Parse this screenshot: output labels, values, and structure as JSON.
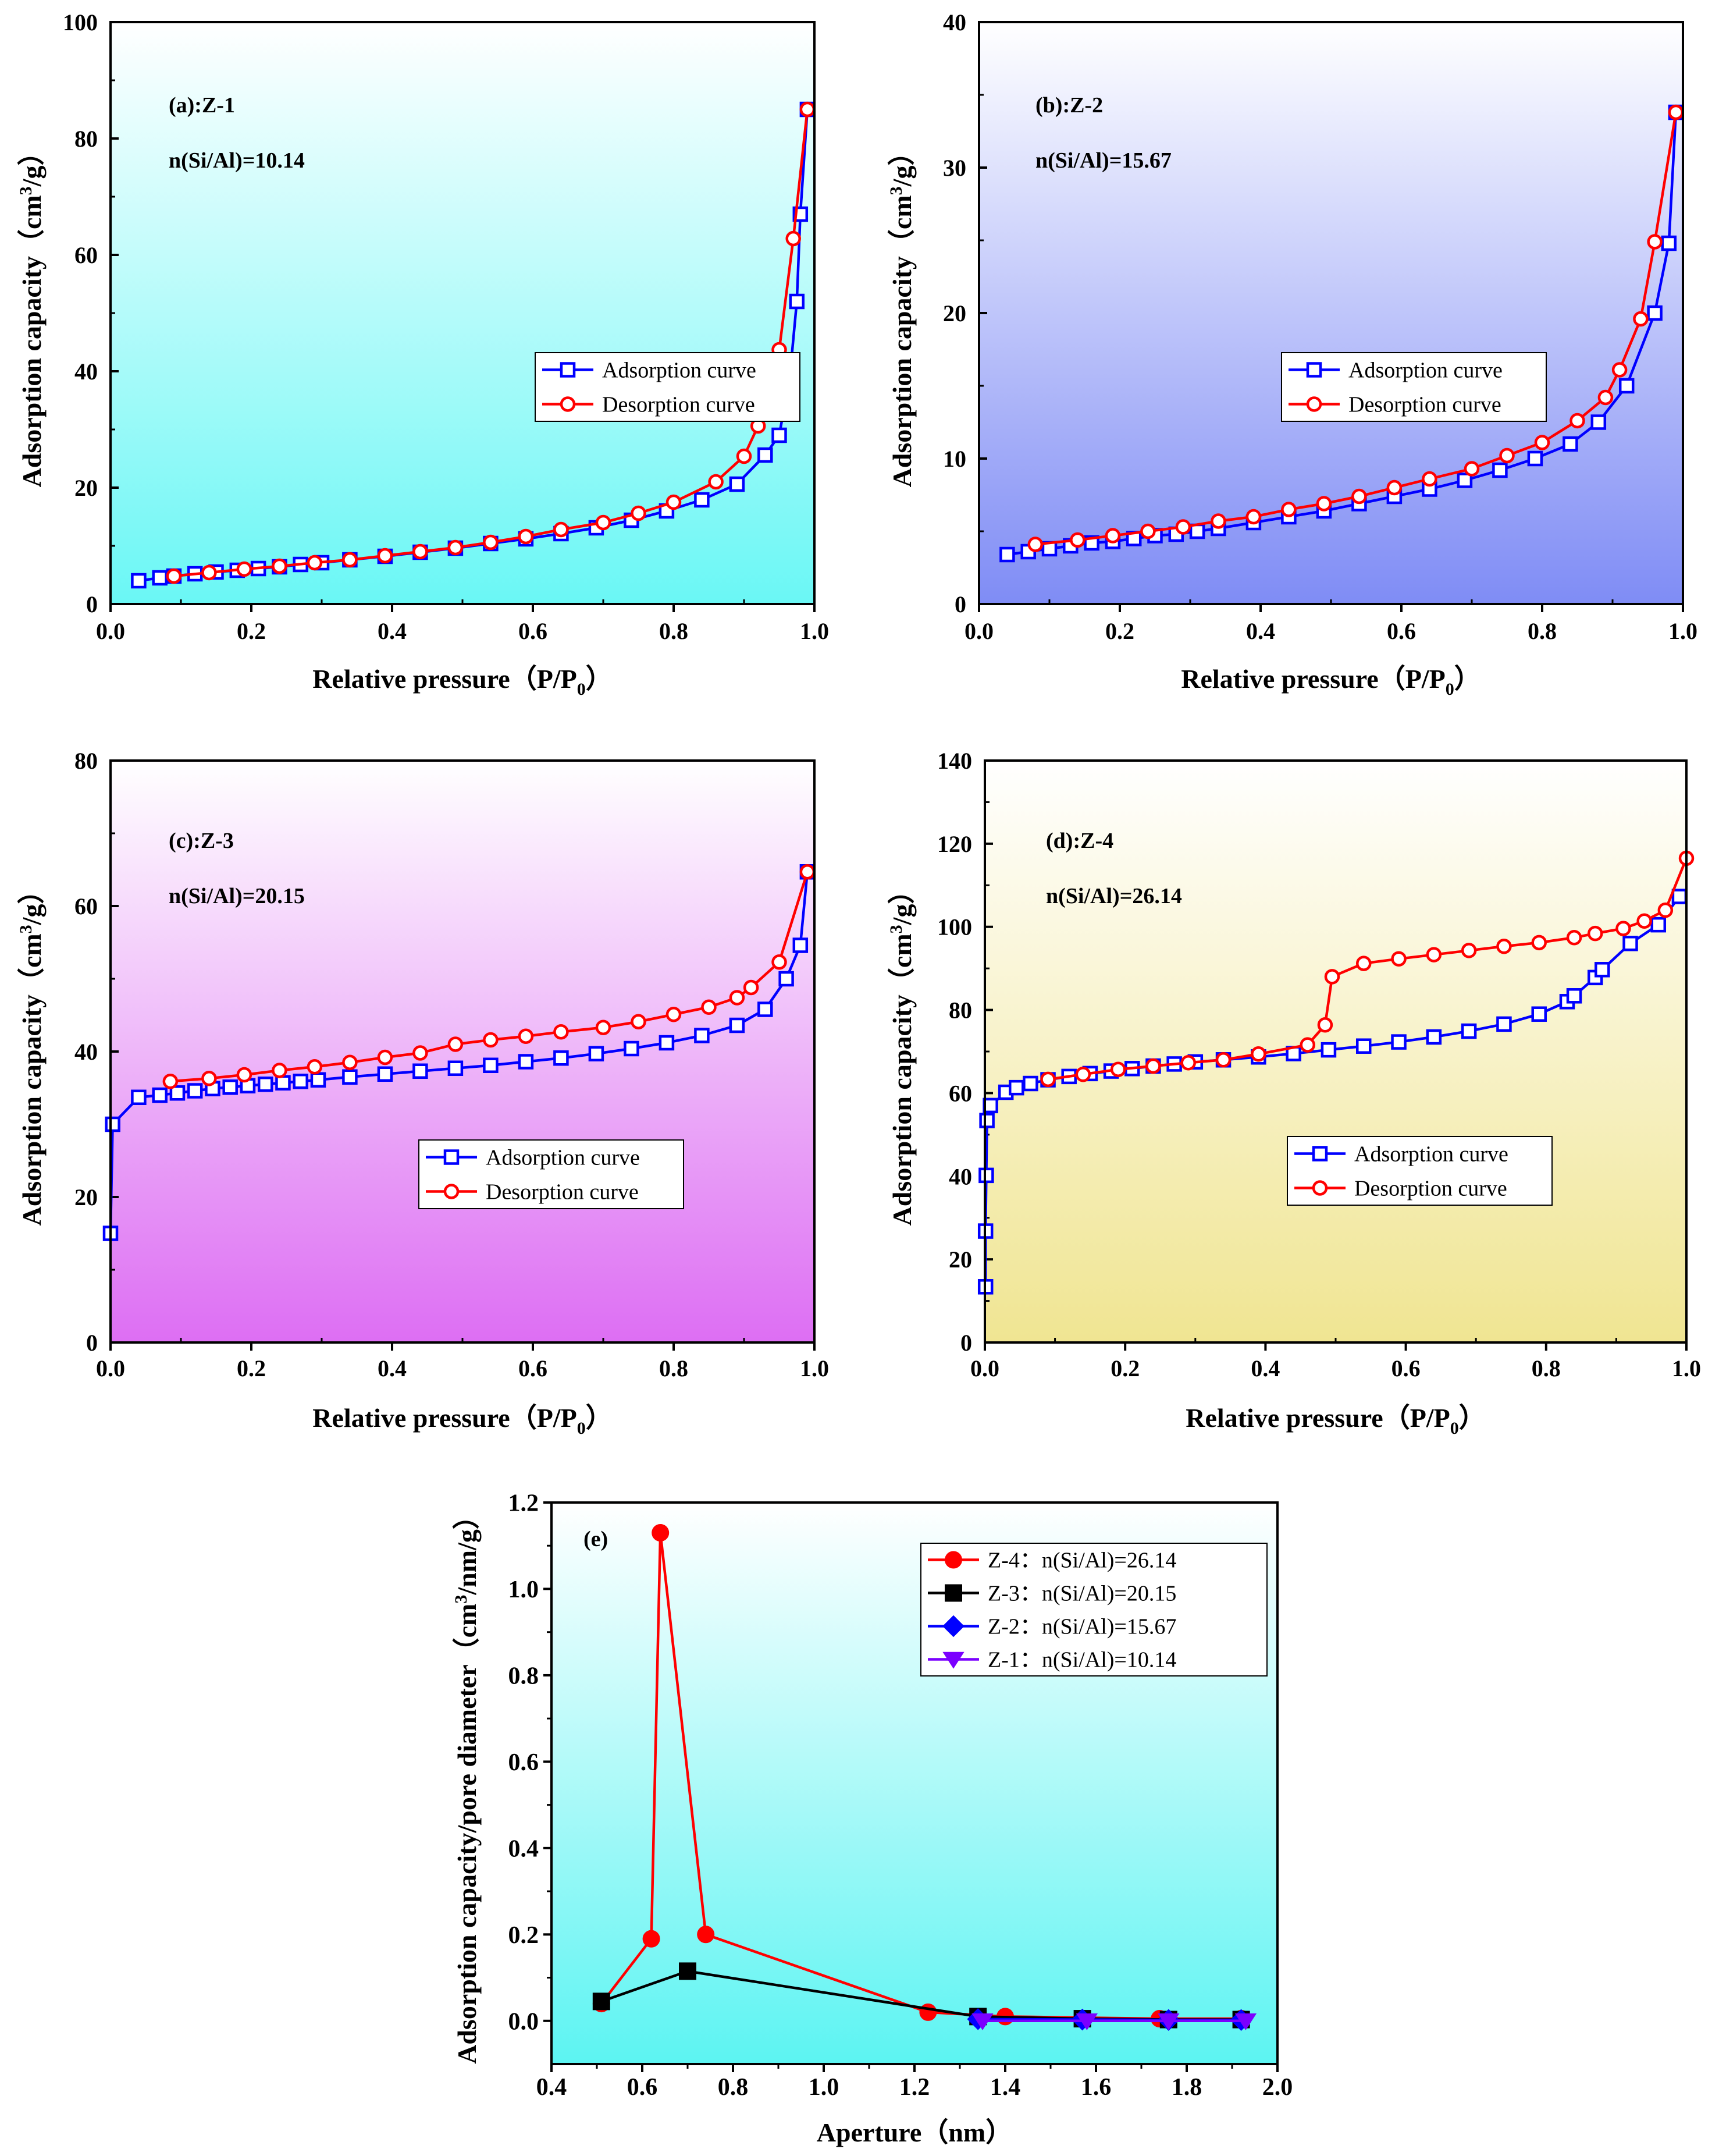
{
  "chart_data": [
    {
      "id": "a",
      "type": "line",
      "panel_label": "(a):Z-1",
      "annotation": "n(Si/Al)=10.14",
      "xlabel": "Relative pressure（P/P0）",
      "xlabel_main": "Relative pressure（P/P",
      "xlabel_sub": "0",
      "xlabel_tail": "）",
      "ylabel": "Adsorption capacity（cm3/g）",
      "ylabel_parts": [
        "Adsorption capacity（cm",
        "3",
        "/g）"
      ],
      "xlim": [
        0,
        1
      ],
      "ylim": [
        0,
        100
      ],
      "xticks": [
        "0.0",
        "0.2",
        "0.4",
        "0.6",
        "0.8",
        "1.0"
      ],
      "yticks": [
        "0",
        "20",
        "40",
        "60",
        "80",
        "100"
      ],
      "legend": {
        "placement": "center-right",
        "entries": [
          "Adsorption curve",
          "Desorption curve"
        ]
      },
      "series": [
        {
          "name": "Adsorption curve",
          "color": "#0000ff",
          "marker": "square",
          "x": [
            0.04,
            0.07,
            0.09,
            0.12,
            0.15,
            0.18,
            0.21,
            0.24,
            0.27,
            0.3,
            0.34,
            0.39,
            0.44,
            0.49,
            0.54,
            0.59,
            0.64,
            0.69,
            0.74,
            0.79,
            0.84,
            0.89,
            0.93,
            0.95,
            0.965,
            0.975,
            0.98,
            0.99
          ],
          "y": [
            4.0,
            4.5,
            4.8,
            5.2,
            5.5,
            5.8,
            6.1,
            6.4,
            6.8,
            7.1,
            7.6,
            8.2,
            8.9,
            9.6,
            10.4,
            11.2,
            12.1,
            13.1,
            14.4,
            16.0,
            17.9,
            20.6,
            25.6,
            29.0,
            39.0,
            52.0,
            67.0,
            85.0
          ]
        },
        {
          "name": "Desorption curve",
          "color": "#ff0000",
          "marker": "circle",
          "x": [
            0.99,
            0.97,
            0.95,
            0.92,
            0.9,
            0.86,
            0.8,
            0.75,
            0.7,
            0.64,
            0.59,
            0.54,
            0.49,
            0.44,
            0.39,
            0.34,
            0.29,
            0.24,
            0.19,
            0.14,
            0.09
          ],
          "y": [
            85.0,
            62.8,
            43.7,
            30.6,
            25.4,
            21.0,
            17.5,
            15.6,
            14.0,
            12.8,
            11.6,
            10.6,
            9.7,
            9.0,
            8.3,
            7.6,
            7.1,
            6.5,
            6.0,
            5.4,
            4.8
          ]
        }
      ]
    },
    {
      "id": "b",
      "type": "line",
      "panel_label": "(b):Z-2",
      "annotation": "n(Si/Al)=15.67",
      "xlabel": "Relative pressure（P/P0）",
      "xlabel_main": "Relative pressure（P/P",
      "xlabel_sub": "0",
      "xlabel_tail": "）",
      "ylabel": "Adsorption capacity（cm3/g）",
      "ylabel_parts": [
        "Adsorption capacity（cm",
        "3",
        "/g）"
      ],
      "xlim": [
        0,
        1
      ],
      "ylim": [
        0,
        40
      ],
      "xticks": [
        "0.0",
        "0.2",
        "0.4",
        "0.6",
        "0.8",
        "1.0"
      ],
      "yticks": [
        "0",
        "10",
        "20",
        "30",
        "40"
      ],
      "legend": {
        "placement": "center-right",
        "entries": [
          "Adsorption curve",
          "Desorption curve"
        ]
      },
      "series": [
        {
          "name": "Adsorption curve",
          "color": "#0000ff",
          "marker": "square",
          "x": [
            0.04,
            0.07,
            0.1,
            0.13,
            0.16,
            0.19,
            0.22,
            0.25,
            0.28,
            0.31,
            0.34,
            0.39,
            0.44,
            0.49,
            0.54,
            0.59,
            0.64,
            0.69,
            0.74,
            0.79,
            0.84,
            0.88,
            0.92,
            0.96,
            0.98,
            0.99
          ],
          "y": [
            3.4,
            3.6,
            3.8,
            4.0,
            4.2,
            4.3,
            4.5,
            4.7,
            4.8,
            5.0,
            5.2,
            5.6,
            6.0,
            6.4,
            6.9,
            7.4,
            7.9,
            8.5,
            9.2,
            10.0,
            11.0,
            12.5,
            15.0,
            20.0,
            24.8,
            33.8
          ]
        },
        {
          "name": "Desorption curve",
          "color": "#ff0000",
          "marker": "circle",
          "x": [
            0.99,
            0.96,
            0.94,
            0.91,
            0.89,
            0.85,
            0.8,
            0.75,
            0.7,
            0.64,
            0.59,
            0.54,
            0.49,
            0.44,
            0.39,
            0.34,
            0.29,
            0.24,
            0.19,
            0.14,
            0.08
          ],
          "y": [
            33.8,
            24.9,
            19.6,
            16.1,
            14.2,
            12.6,
            11.1,
            10.2,
            9.3,
            8.6,
            8.0,
            7.4,
            6.9,
            6.5,
            6.0,
            5.7,
            5.3,
            5.0,
            4.7,
            4.4,
            4.1
          ]
        }
      ]
    },
    {
      "id": "c",
      "type": "line",
      "panel_label": "(c):Z-3",
      "annotation": "n(Si/Al)=20.15",
      "xlabel": "Relative pressure（P/P0）",
      "xlabel_main": "Relative pressure（P/P",
      "xlabel_sub": "0",
      "xlabel_tail": "）",
      "ylabel": "Adsorption capacity（cm3/g）",
      "ylabel_parts": [
        "Adsorption capacity（cm",
        "3",
        "/g）"
      ],
      "xlim": [
        0,
        1
      ],
      "ylim": [
        0,
        80
      ],
      "xticks": [
        "0.0",
        "0.2",
        "0.4",
        "0.6",
        "0.8",
        "1.0"
      ],
      "yticks": [
        "0",
        "20",
        "40",
        "60",
        "80"
      ],
      "legend": {
        "placement": "center-right",
        "entries": [
          "Adsorption curve",
          "Desorption curve"
        ]
      },
      "series": [
        {
          "name": "Adsorption curve",
          "color": "#0000ff",
          "marker": "square",
          "x": [
            0.0,
            0.003,
            0.04,
            0.07,
            0.095,
            0.12,
            0.145,
            0.17,
            0.195,
            0.22,
            0.245,
            0.27,
            0.295,
            0.34,
            0.39,
            0.44,
            0.49,
            0.54,
            0.59,
            0.64,
            0.69,
            0.74,
            0.79,
            0.84,
            0.89,
            0.93,
            0.96,
            0.98,
            0.99
          ],
          "y": [
            15.0,
            30.0,
            33.7,
            34.0,
            34.3,
            34.6,
            34.9,
            35.1,
            35.3,
            35.5,
            35.7,
            35.9,
            36.1,
            36.5,
            36.9,
            37.3,
            37.7,
            38.1,
            38.6,
            39.1,
            39.7,
            40.4,
            41.2,
            42.2,
            43.6,
            45.8,
            50.0,
            54.6,
            64.7
          ]
        },
        {
          "name": "Desorption curve",
          "color": "#ff0000",
          "marker": "circle",
          "x": [
            0.99,
            0.95,
            0.91,
            0.89,
            0.85,
            0.8,
            0.75,
            0.7,
            0.64,
            0.59,
            0.54,
            0.49,
            0.44,
            0.39,
            0.34,
            0.29,
            0.24,
            0.19,
            0.14,
            0.085
          ],
          "y": [
            64.7,
            52.3,
            48.8,
            47.4,
            46.1,
            45.1,
            44.1,
            43.3,
            42.7,
            42.1,
            41.6,
            41.0,
            39.8,
            39.2,
            38.5,
            37.9,
            37.4,
            36.8,
            36.3,
            35.9
          ]
        }
      ]
    },
    {
      "id": "d",
      "type": "line",
      "panel_label": "(d):Z-4",
      "annotation": "n(Si/Al)=26.14",
      "xlabel": "Relative pressure（P/P0）",
      "xlabel_main": "Relative pressure（P/P",
      "xlabel_sub": "0",
      "xlabel_tail": "）",
      "ylabel": "Adsorption capacity（cm3/g）",
      "ylabel_parts": [
        "Adsorption capacity（cm",
        "3",
        "/g）"
      ],
      "xlim": [
        0,
        1
      ],
      "ylim": [
        0,
        140
      ],
      "xticks": [
        "0.0",
        "0.2",
        "0.4",
        "0.6",
        "0.8",
        "1.0"
      ],
      "yticks": [
        "0",
        "20",
        "40",
        "60",
        "80",
        "100",
        "120",
        "140"
      ],
      "legend": {
        "placement": "center-right",
        "entries": [
          "Adsorption curve",
          "Desorption curve"
        ]
      },
      "series": [
        {
          "name": "Adsorption curve",
          "color": "#0000ff",
          "marker": "square",
          "x": [
            0.001,
            0.001,
            0.002,
            0.003,
            0.008,
            0.03,
            0.045,
            0.065,
            0.09,
            0.12,
            0.15,
            0.18,
            0.21,
            0.24,
            0.27,
            0.3,
            0.34,
            0.39,
            0.44,
            0.49,
            0.54,
            0.59,
            0.64,
            0.69,
            0.74,
            0.79,
            0.83,
            0.84,
            0.87,
            0.88,
            0.92,
            0.96,
            0.99
          ],
          "y": [
            13.4,
            26.8,
            40.2,
            53.4,
            57.0,
            60.2,
            61.3,
            62.3,
            63.2,
            64.0,
            64.7,
            65.3,
            65.9,
            66.5,
            67.0,
            67.5,
            68.0,
            68.7,
            69.5,
            70.4,
            71.3,
            72.3,
            73.5,
            74.9,
            76.6,
            79.0,
            82.0,
            83.4,
            87.8,
            89.7,
            96.0,
            100.5,
            107.3
          ]
        },
        {
          "name": "Desorption curve",
          "color": "#ff0000",
          "marker": "circle",
          "x": [
            1.0,
            0.97,
            0.94,
            0.91,
            0.87,
            0.84,
            0.79,
            0.74,
            0.69,
            0.64,
            0.59,
            0.54,
            0.495,
            0.485,
            0.46,
            0.39,
            0.34,
            0.29,
            0.24,
            0.19,
            0.14,
            0.09
          ],
          "y": [
            116.5,
            104.0,
            101.4,
            99.6,
            98.4,
            97.4,
            96.2,
            95.3,
            94.3,
            93.3,
            92.3,
            91.2,
            88.0,
            76.4,
            71.6,
            69.4,
            68.0,
            67.3,
            66.5,
            65.7,
            64.5,
            63.3
          ]
        }
      ]
    },
    {
      "id": "e",
      "type": "line",
      "panel_label": "(e)",
      "xlabel": "Aperture（nm）",
      "ylabel": "Adsorption capacity/pore diameter（cm3/nm/g）",
      "ylabel_parts": [
        "Adsorption capacity/pore diameter（cm",
        "3",
        "/nm/g）"
      ],
      "xlim": [
        0.4,
        2.0
      ],
      "ylim": [
        -0.1,
        1.2
      ],
      "xticks": [
        "0.4",
        "0.6",
        "0.8",
        "1.0",
        "1.2",
        "1.4",
        "1.6",
        "1.8",
        "2.0"
      ],
      "yticks": [
        "0.0",
        "0.2",
        "0.4",
        "0.6",
        "0.8",
        "1.0",
        "1.2"
      ],
      "legend": {
        "placement": "top-right",
        "entries": [
          "Z-4：n(Si/Al)=26.14",
          "Z-3：n(Si/Al)=20.15",
          "Z-2：n(Si/Al)=15.67",
          "Z-1：n(Si/Al)=10.14"
        ]
      },
      "series": [
        {
          "name": "Z-4：n(Si/Al)=26.14",
          "color": "#ff0000",
          "marker": "circle",
          "x": [
            0.51,
            0.62,
            0.64,
            0.74,
            1.23,
            1.4,
            1.74,
            1.92
          ],
          "y": [
            0.04,
            0.19,
            1.13,
            0.2,
            0.02,
            0.01,
            0.005,
            0.005
          ]
        },
        {
          "name": "Z-3：n(Si/Al)=20.15",
          "color": "#000000",
          "marker": "square",
          "x": [
            0.51,
            0.7,
            1.34,
            1.57,
            1.76,
            1.92
          ],
          "y": [
            0.045,
            0.115,
            0.01,
            0.005,
            0.003,
            0.003
          ]
        },
        {
          "name": "Z-2：n(Si/Al)=15.67",
          "color": "#0000ff",
          "marker": "diamond",
          "x": [
            1.34,
            1.57,
            1.76,
            1.92
          ],
          "y": [
            0.004,
            0.003,
            0.002,
            0.002
          ]
        },
        {
          "name": "Z-1：n(Si/Al)=10.14",
          "color": "#7b00ff",
          "marker": "triangle-down",
          "x": [
            1.35,
            1.58,
            1.76,
            1.93
          ],
          "y": [
            0.0,
            0.0,
            0.0,
            0.0
          ]
        }
      ]
    }
  ]
}
